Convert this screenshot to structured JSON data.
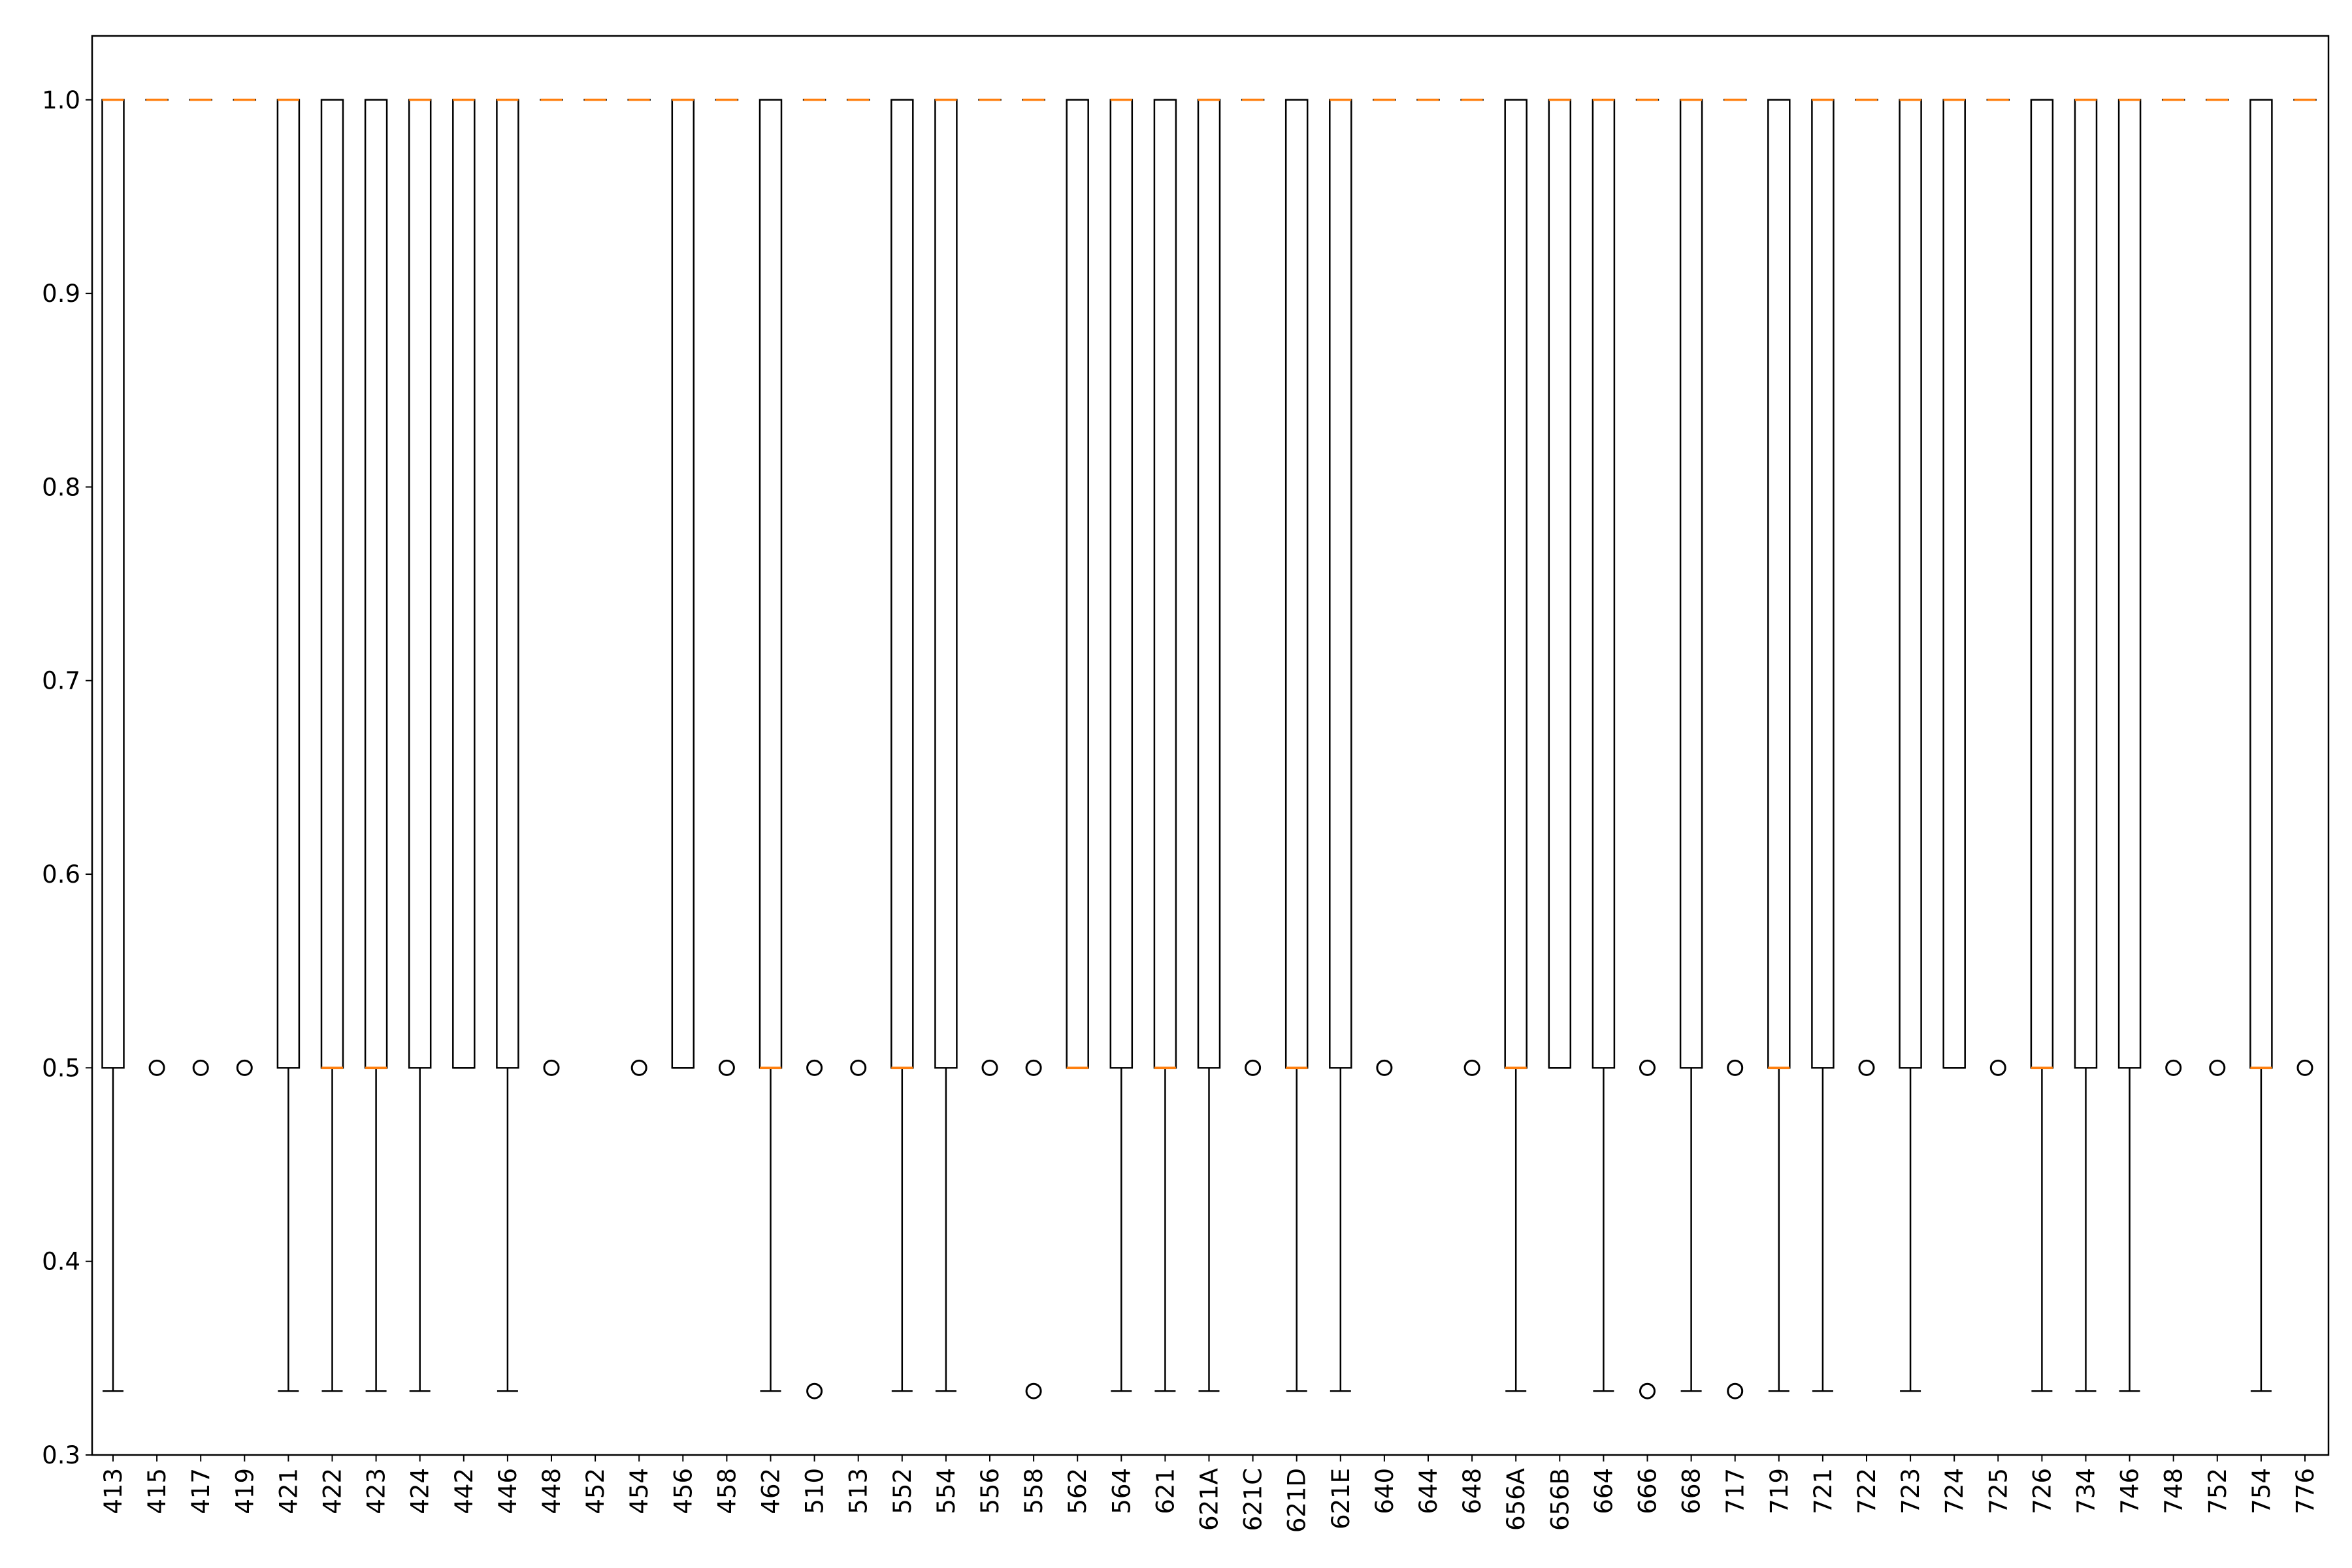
{
  "chart_data": {
    "type": "box",
    "title": "",
    "xlabel": "",
    "ylabel": "",
    "ylim": [
      0.3,
      1.033
    ],
    "yticks": [
      0.3,
      0.4,
      0.5,
      0.6,
      0.7,
      0.8,
      0.9,
      1.0
    ],
    "ytick_labels": [
      "0.3",
      "0.4",
      "0.5",
      "0.6",
      "0.7",
      "0.8",
      "0.9",
      "1.0"
    ],
    "grid": false,
    "colors": {
      "box": "#000000",
      "median": "#ff7f0e",
      "flier": "#000000"
    },
    "categories": [
      "413",
      "415",
      "417",
      "419",
      "421",
      "422",
      "423",
      "424",
      "442",
      "446",
      "448",
      "452",
      "454",
      "456",
      "458",
      "462",
      "510",
      "513",
      "552",
      "554",
      "556",
      "558",
      "562",
      "564",
      "621",
      "621A",
      "621C",
      "621D",
      "621E",
      "640",
      "644",
      "648",
      "656A",
      "656B",
      "664",
      "666",
      "668",
      "717",
      "719",
      "721",
      "722",
      "723",
      "724",
      "725",
      "726",
      "734",
      "746",
      "748",
      "752",
      "754",
      "776"
    ],
    "boxes": [
      {
        "q1": 0.5,
        "med": 1.0,
        "q3": 1.0,
        "whislo": 0.333,
        "whishi": 1.0,
        "fliers": []
      },
      {
        "q1": 1.0,
        "med": 1.0,
        "q3": 1.0,
        "whislo": 1.0,
        "whishi": 1.0,
        "fliers": [
          0.5
        ]
      },
      {
        "q1": 1.0,
        "med": 1.0,
        "q3": 1.0,
        "whislo": 1.0,
        "whishi": 1.0,
        "fliers": [
          0.5
        ]
      },
      {
        "q1": 1.0,
        "med": 1.0,
        "q3": 1.0,
        "whislo": 1.0,
        "whishi": 1.0,
        "fliers": [
          0.5
        ]
      },
      {
        "q1": 0.5,
        "med": 1.0,
        "q3": 1.0,
        "whislo": 0.333,
        "whishi": 1.0,
        "fliers": []
      },
      {
        "q1": 0.5,
        "med": 0.5,
        "q3": 1.0,
        "whislo": 0.333,
        "whishi": 1.0,
        "fliers": []
      },
      {
        "q1": 0.5,
        "med": 0.5,
        "q3": 1.0,
        "whislo": 0.333,
        "whishi": 1.0,
        "fliers": []
      },
      {
        "q1": 0.5,
        "med": 1.0,
        "q3": 1.0,
        "whislo": 0.333,
        "whishi": 1.0,
        "fliers": []
      },
      {
        "q1": 0.5,
        "med": 1.0,
        "q3": 1.0,
        "whislo": 0.5,
        "whishi": 1.0,
        "fliers": []
      },
      {
        "q1": 0.5,
        "med": 1.0,
        "q3": 1.0,
        "whislo": 0.333,
        "whishi": 1.0,
        "fliers": []
      },
      {
        "q1": 1.0,
        "med": 1.0,
        "q3": 1.0,
        "whislo": 1.0,
        "whishi": 1.0,
        "fliers": [
          0.5
        ]
      },
      {
        "q1": 1.0,
        "med": 1.0,
        "q3": 1.0,
        "whislo": 1.0,
        "whishi": 1.0,
        "fliers": []
      },
      {
        "q1": 1.0,
        "med": 1.0,
        "q3": 1.0,
        "whislo": 1.0,
        "whishi": 1.0,
        "fliers": [
          0.5
        ]
      },
      {
        "q1": 0.5,
        "med": 1.0,
        "q3": 1.0,
        "whislo": 0.5,
        "whishi": 1.0,
        "fliers": []
      },
      {
        "q1": 1.0,
        "med": 1.0,
        "q3": 1.0,
        "whislo": 1.0,
        "whishi": 1.0,
        "fliers": [
          0.5
        ]
      },
      {
        "q1": 0.5,
        "med": 0.5,
        "q3": 1.0,
        "whislo": 0.333,
        "whishi": 1.0,
        "fliers": []
      },
      {
        "q1": 1.0,
        "med": 1.0,
        "q3": 1.0,
        "whislo": 1.0,
        "whishi": 1.0,
        "fliers": [
          0.5,
          0.333
        ]
      },
      {
        "q1": 1.0,
        "med": 1.0,
        "q3": 1.0,
        "whislo": 1.0,
        "whishi": 1.0,
        "fliers": [
          0.5
        ]
      },
      {
        "q1": 0.5,
        "med": 0.5,
        "q3": 1.0,
        "whislo": 0.333,
        "whishi": 1.0,
        "fliers": []
      },
      {
        "q1": 0.5,
        "med": 1.0,
        "q3": 1.0,
        "whislo": 0.333,
        "whishi": 1.0,
        "fliers": []
      },
      {
        "q1": 1.0,
        "med": 1.0,
        "q3": 1.0,
        "whislo": 1.0,
        "whishi": 1.0,
        "fliers": [
          0.5
        ]
      },
      {
        "q1": 1.0,
        "med": 1.0,
        "q3": 1.0,
        "whislo": 1.0,
        "whishi": 1.0,
        "fliers": [
          0.5,
          0.333
        ]
      },
      {
        "q1": 0.5,
        "med": 0.5,
        "q3": 1.0,
        "whislo": 0.5,
        "whishi": 1.0,
        "fliers": []
      },
      {
        "q1": 0.5,
        "med": 1.0,
        "q3": 1.0,
        "whislo": 0.333,
        "whishi": 1.0,
        "fliers": []
      },
      {
        "q1": 0.5,
        "med": 0.5,
        "q3": 1.0,
        "whislo": 0.333,
        "whishi": 1.0,
        "fliers": []
      },
      {
        "q1": 0.5,
        "med": 1.0,
        "q3": 1.0,
        "whislo": 0.333,
        "whishi": 1.0,
        "fliers": []
      },
      {
        "q1": 1.0,
        "med": 1.0,
        "q3": 1.0,
        "whislo": 1.0,
        "whishi": 1.0,
        "fliers": [
          0.5
        ]
      },
      {
        "q1": 0.5,
        "med": 0.5,
        "q3": 1.0,
        "whislo": 0.333,
        "whishi": 1.0,
        "fliers": []
      },
      {
        "q1": 0.5,
        "med": 1.0,
        "q3": 1.0,
        "whislo": 0.333,
        "whishi": 1.0,
        "fliers": []
      },
      {
        "q1": 1.0,
        "med": 1.0,
        "q3": 1.0,
        "whislo": 1.0,
        "whishi": 1.0,
        "fliers": [
          0.5
        ]
      },
      {
        "q1": 1.0,
        "med": 1.0,
        "q3": 1.0,
        "whislo": 1.0,
        "whishi": 1.0,
        "fliers": []
      },
      {
        "q1": 1.0,
        "med": 1.0,
        "q3": 1.0,
        "whislo": 1.0,
        "whishi": 1.0,
        "fliers": [
          0.5
        ]
      },
      {
        "q1": 0.5,
        "med": 0.5,
        "q3": 1.0,
        "whislo": 0.333,
        "whishi": 1.0,
        "fliers": []
      },
      {
        "q1": 0.5,
        "med": 1.0,
        "q3": 1.0,
        "whislo": 0.5,
        "whishi": 1.0,
        "fliers": []
      },
      {
        "q1": 0.5,
        "med": 1.0,
        "q3": 1.0,
        "whislo": 0.333,
        "whishi": 1.0,
        "fliers": []
      },
      {
        "q1": 1.0,
        "med": 1.0,
        "q3": 1.0,
        "whislo": 1.0,
        "whishi": 1.0,
        "fliers": [
          0.5,
          0.333
        ]
      },
      {
        "q1": 0.5,
        "med": 1.0,
        "q3": 1.0,
        "whislo": 0.333,
        "whishi": 1.0,
        "fliers": []
      },
      {
        "q1": 1.0,
        "med": 1.0,
        "q3": 1.0,
        "whislo": 1.0,
        "whishi": 1.0,
        "fliers": [
          0.5,
          0.333
        ]
      },
      {
        "q1": 0.5,
        "med": 0.5,
        "q3": 1.0,
        "whislo": 0.333,
        "whishi": 1.0,
        "fliers": []
      },
      {
        "q1": 0.5,
        "med": 1.0,
        "q3": 1.0,
        "whislo": 0.333,
        "whishi": 1.0,
        "fliers": []
      },
      {
        "q1": 1.0,
        "med": 1.0,
        "q3": 1.0,
        "whislo": 1.0,
        "whishi": 1.0,
        "fliers": [
          0.5
        ]
      },
      {
        "q1": 0.5,
        "med": 1.0,
        "q3": 1.0,
        "whislo": 0.333,
        "whishi": 1.0,
        "fliers": []
      },
      {
        "q1": 0.5,
        "med": 1.0,
        "q3": 1.0,
        "whislo": 0.5,
        "whishi": 1.0,
        "fliers": []
      },
      {
        "q1": 1.0,
        "med": 1.0,
        "q3": 1.0,
        "whislo": 1.0,
        "whishi": 1.0,
        "fliers": [
          0.5
        ]
      },
      {
        "q1": 0.5,
        "med": 0.5,
        "q3": 1.0,
        "whislo": 0.333,
        "whishi": 1.0,
        "fliers": []
      },
      {
        "q1": 0.5,
        "med": 1.0,
        "q3": 1.0,
        "whislo": 0.333,
        "whishi": 1.0,
        "fliers": []
      },
      {
        "q1": 0.5,
        "med": 1.0,
        "q3": 1.0,
        "whislo": 0.333,
        "whishi": 1.0,
        "fliers": []
      },
      {
        "q1": 1.0,
        "med": 1.0,
        "q3": 1.0,
        "whislo": 1.0,
        "whishi": 1.0,
        "fliers": [
          0.5
        ]
      },
      {
        "q1": 1.0,
        "med": 1.0,
        "q3": 1.0,
        "whislo": 1.0,
        "whishi": 1.0,
        "fliers": [
          0.5
        ]
      },
      {
        "q1": 0.5,
        "med": 0.5,
        "q3": 1.0,
        "whislo": 0.333,
        "whishi": 1.0,
        "fliers": []
      },
      {
        "q1": 1.0,
        "med": 1.0,
        "q3": 1.0,
        "whislo": 1.0,
        "whishi": 1.0,
        "fliers": [
          0.5
        ]
      }
    ]
  }
}
